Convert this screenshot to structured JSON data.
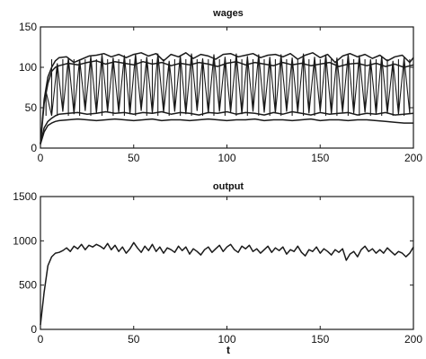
{
  "colors": {
    "line": "#1a1a1a",
    "frame": "#1a1a1a",
    "background": "#ffffff"
  },
  "chart_data": [
    {
      "type": "line",
      "title": "wages",
      "xlabel": "",
      "ylabel": "",
      "xlim": [
        0,
        200
      ],
      "ylim": [
        0,
        150
      ],
      "xticks": [
        0,
        50,
        100,
        150,
        200
      ],
      "yticks": [
        0,
        50,
        100,
        150
      ],
      "grid": false,
      "series": [
        {
          "role": "upper envelope",
          "x": [
            0,
            2,
            4,
            6,
            8,
            10,
            14,
            18,
            22,
            26,
            30,
            34,
            38,
            42,
            46,
            50,
            54,
            58,
            62,
            66,
            70,
            74,
            78,
            82,
            86,
            90,
            94,
            98,
            102,
            106,
            110,
            114,
            118,
            122,
            126,
            130,
            134,
            138,
            142,
            146,
            150,
            154,
            158,
            162,
            166,
            170,
            174,
            178,
            182,
            186,
            190,
            194,
            198,
            200
          ],
          "values": [
            5,
            60,
            88,
            100,
            108,
            112,
            113,
            106,
            110,
            114,
            115,
            117,
            113,
            116,
            112,
            116,
            118,
            114,
            117,
            108,
            116,
            113,
            118,
            111,
            116,
            114,
            110,
            116,
            117,
            113,
            115,
            117,
            112,
            115,
            116,
            113,
            117,
            110,
            115,
            118,
            112,
            116,
            106,
            114,
            117,
            113,
            116,
            111,
            115,
            108,
            113,
            115,
            106,
            112
          ]
        },
        {
          "role": "upper band",
          "x": [
            0,
            2,
            4,
            6,
            8,
            10,
            15,
            20,
            25,
            30,
            35,
            40,
            45,
            50,
            55,
            60,
            65,
            70,
            75,
            80,
            85,
            90,
            95,
            100,
            105,
            110,
            115,
            120,
            125,
            130,
            135,
            140,
            145,
            150,
            155,
            160,
            165,
            170,
            175,
            180,
            185,
            190,
            195,
            200
          ],
          "values": [
            5,
            55,
            80,
            95,
            100,
            102,
            105,
            103,
            106,
            108,
            104,
            107,
            105,
            103,
            107,
            104,
            106,
            102,
            105,
            103,
            106,
            104,
            101,
            105,
            107,
            103,
            106,
            104,
            102,
            106,
            103,
            105,
            102,
            104,
            106,
            101,
            104,
            105,
            102,
            105,
            101,
            104,
            100,
            103
          ]
        },
        {
          "role": "lower band",
          "x": [
            0,
            2,
            4,
            6,
            8,
            10,
            15,
            20,
            25,
            30,
            35,
            40,
            45,
            50,
            55,
            60,
            65,
            70,
            75,
            80,
            85,
            90,
            95,
            100,
            105,
            110,
            115,
            120,
            125,
            130,
            135,
            140,
            145,
            150,
            155,
            160,
            165,
            170,
            175,
            180,
            185,
            190,
            195,
            200
          ],
          "values": [
            5,
            25,
            33,
            37,
            40,
            42,
            43,
            44,
            42,
            43,
            45,
            43,
            44,
            42,
            44,
            43,
            45,
            42,
            44,
            43,
            41,
            44,
            43,
            45,
            42,
            44,
            43,
            41,
            44,
            42,
            45,
            43,
            41,
            44,
            42,
            43,
            44,
            41,
            43,
            42,
            44,
            41,
            42,
            43
          ]
        },
        {
          "role": "lower envelope",
          "x": [
            0,
            2,
            4,
            6,
            8,
            10,
            15,
            20,
            25,
            30,
            35,
            40,
            45,
            50,
            55,
            60,
            65,
            70,
            75,
            80,
            85,
            90,
            95,
            100,
            105,
            110,
            115,
            120,
            125,
            130,
            135,
            140,
            145,
            150,
            155,
            160,
            165,
            170,
            175,
            180,
            185,
            190,
            195,
            200
          ],
          "values": [
            5,
            20,
            28,
            31,
            33,
            34,
            35,
            36,
            35,
            34,
            35,
            36,
            35,
            34,
            35,
            36,
            34,
            35,
            35,
            34,
            35,
            36,
            35,
            34,
            35,
            35,
            36,
            34,
            35,
            35,
            34,
            35,
            36,
            34,
            35,
            35,
            34,
            35,
            35,
            34,
            33,
            32,
            31,
            31
          ]
        },
        {
          "role": "oscillation spikes",
          "x": [
            3,
            6,
            9,
            12,
            15,
            18,
            21,
            24,
            27,
            30,
            33,
            36,
            39,
            42,
            45,
            48,
            51,
            54,
            57,
            60,
            63,
            66,
            69,
            72,
            75,
            78,
            81,
            84,
            87,
            90,
            93,
            96,
            99,
            102,
            105,
            108,
            111,
            114,
            117,
            120,
            123,
            126,
            129,
            132,
            135,
            138,
            141,
            144,
            147,
            150,
            153,
            156,
            159,
            162,
            165,
            168,
            171,
            174,
            177,
            180,
            183,
            186,
            189,
            192,
            195,
            198
          ],
          "values": [
            70,
            40,
            105,
            45,
            112,
            42,
            110,
            46,
            114,
            43,
            116,
            45,
            112,
            44,
            115,
            42,
            117,
            46,
            113,
            43,
            117,
            44,
            108,
            45,
            115,
            42,
            117,
            46,
            111,
            43,
            116,
            45,
            113,
            44,
            117,
            42,
            114,
            45,
            116,
            44,
            113,
            43,
            116,
            45,
            112,
            44,
            117,
            43,
            113,
            45,
            116,
            42,
            112,
            44,
            117,
            43,
            115,
            44,
            110,
            42,
            114,
            43,
            108,
            42,
            112,
            43
          ]
        }
      ]
    },
    {
      "type": "line",
      "title": "output",
      "xlabel": "t",
      "ylabel": "",
      "xlim": [
        0,
        200
      ],
      "ylim": [
        0,
        1500
      ],
      "xticks": [
        0,
        50,
        100,
        150,
        200
      ],
      "yticks": [
        0,
        500,
        1000,
        1500
      ],
      "grid": false,
      "series": [
        {
          "x": [
            0,
            2,
            4,
            6,
            8,
            10,
            12,
            14,
            16,
            18,
            20,
            22,
            24,
            26,
            28,
            30,
            32,
            34,
            36,
            38,
            40,
            42,
            44,
            46,
            48,
            50,
            52,
            54,
            56,
            58,
            60,
            62,
            64,
            66,
            68,
            70,
            72,
            74,
            76,
            78,
            80,
            82,
            84,
            86,
            88,
            90,
            92,
            94,
            96,
            98,
            100,
            102,
            104,
            106,
            108,
            110,
            112,
            114,
            116,
            118,
            120,
            122,
            124,
            126,
            128,
            130,
            132,
            134,
            136,
            138,
            140,
            142,
            144,
            146,
            148,
            150,
            152,
            154,
            156,
            158,
            160,
            162,
            164,
            166,
            168,
            170,
            172,
            174,
            176,
            178,
            180,
            182,
            184,
            186,
            188,
            190,
            192,
            194,
            196,
            198,
            200
          ],
          "values": [
            50,
            420,
            720,
            820,
            860,
            870,
            890,
            920,
            880,
            940,
            910,
            960,
            900,
            950,
            930,
            960,
            940,
            910,
            970,
            900,
            950,
            880,
            930,
            860,
            910,
            980,
            920,
            870,
            940,
            890,
            960,
            880,
            930,
            860,
            920,
            900,
            870,
            940,
            890,
            930,
            850,
            910,
            880,
            840,
            900,
            930,
            870,
            910,
            950,
            880,
            930,
            960,
            900,
            870,
            940,
            910,
            950,
            880,
            910,
            860,
            900,
            940,
            870,
            920,
            890,
            930,
            850,
            900,
            880,
            940,
            870,
            830,
            900,
            880,
            930,
            860,
            910,
            880,
            840,
            900,
            870,
            910,
            780,
            850,
            880,
            820,
            900,
            940,
            880,
            910,
            860,
            900,
            860,
            920,
            880,
            840,
            880,
            860,
            820,
            860,
            930
          ]
        }
      ]
    }
  ]
}
